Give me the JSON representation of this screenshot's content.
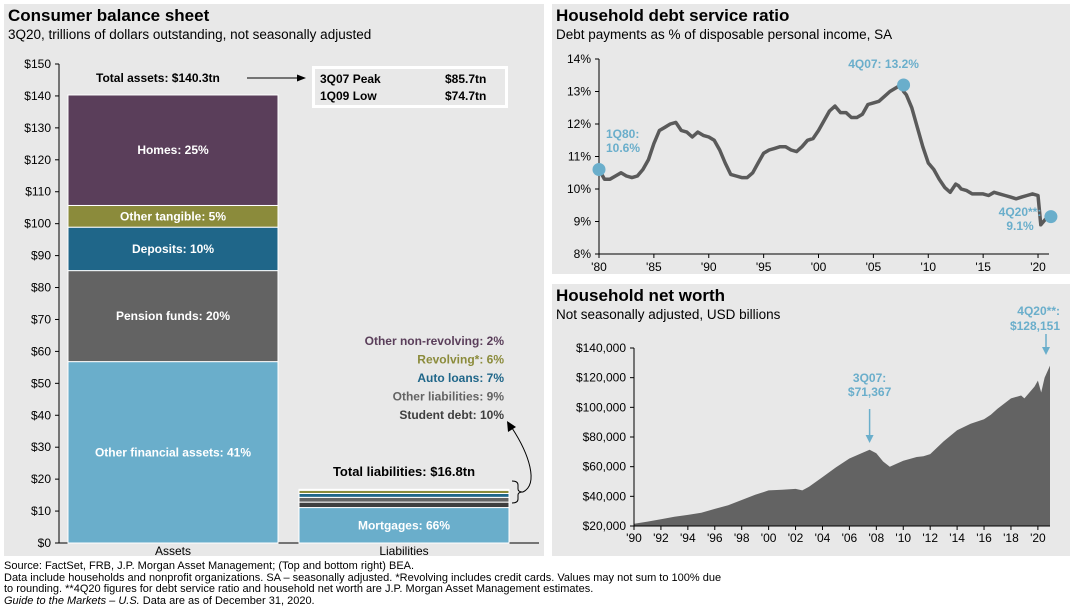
{
  "footnote": {
    "line1": "Source: FactSet, FRB, J.P. Morgan Asset Management; (Top and bottom right) BEA.",
    "line2": "Data include households and nonprofit organizations. SA – seasonally adjusted. *Revolving includes credit cards. Values may not sum to 100% due",
    "line3": "to rounding. **4Q20 figures for debt service ratio and household net worth are J.P. Morgan Asset Management estimates.",
    "line4_italic": "Guide to the Markets – U.S.",
    "line4_rest": " Data are as of December 31, 2020."
  },
  "chart_data": [
    {
      "id": "balance-sheet",
      "type": "bar",
      "stacked": true,
      "title": "Consumer balance sheet",
      "subtitle": "3Q20, trillions of dollars outstanding, not seasonally adjusted",
      "categories": [
        "Assets",
        "Liabilities"
      ],
      "ylim": [
        0,
        150
      ],
      "yticks": [
        0,
        10,
        20,
        30,
        40,
        50,
        60,
        70,
        80,
        90,
        100,
        110,
        120,
        130,
        140,
        150
      ],
      "ytick_labels": [
        "$0",
        "$10",
        "$20",
        "$30",
        "$40",
        "$50",
        "$60",
        "$70",
        "$80",
        "$90",
        "$100",
        "$110",
        "$120",
        "$130",
        "$140",
        "$150"
      ],
      "assets": {
        "total_label": "Total assets: $140.3tn",
        "total": 140.3,
        "segments": [
          {
            "name": "Other financial assets",
            "label": "Other financial assets: 41%",
            "value": 56.8,
            "color": "#6aaecb"
          },
          {
            "name": "Pension funds",
            "label": "Pension funds: 20%",
            "value": 28.5,
            "color": "#636363"
          },
          {
            "name": "Deposits",
            "label": "Deposits: 10%",
            "value": 13.6,
            "color": "#1f6689"
          },
          {
            "name": "Other tangible",
            "label": "Other tangible: 5%",
            "value": 6.8,
            "color": "#8b8b3b"
          },
          {
            "name": "Homes",
            "label": "Homes: 25%",
            "value": 34.6,
            "color": "#5a3e5a"
          }
        ]
      },
      "liabilities": {
        "total_label": "Total liabilities: $16.8tn",
        "total": 16.8,
        "segments": [
          {
            "name": "Mortgages",
            "label": "Mortgages: 66%",
            "value": 11.1,
            "color": "#6aaecb"
          },
          {
            "name": "Student debt",
            "label": "Student debt: 10%",
            "value": 1.7,
            "color": "#3e3e3e"
          },
          {
            "name": "Other liabilities",
            "label": "Other liabilities: 9%",
            "value": 1.5,
            "color": "#636363"
          },
          {
            "name": "Auto loans",
            "label": "Auto loans: 7%",
            "value": 1.2,
            "color": "#1f6689"
          },
          {
            "name": "Revolving",
            "label": "Revolving*: 6%",
            "value": 1.0,
            "color": "#8b8b3b"
          },
          {
            "name": "Other non-revolving",
            "label": "Other non-revolving: 2%",
            "value": 0.3,
            "color": "#5a3e5a"
          }
        ]
      },
      "legend_labels": [
        {
          "text": "Other non-revolving: 2%",
          "color": "#5a3e5a"
        },
        {
          "text": "Revolving*: 6%",
          "color": "#8b8b3b"
        },
        {
          "text": "Auto loans: 7%",
          "color": "#1f6689"
        },
        {
          "text": "Other liabilities: 9%",
          "color": "#636363"
        },
        {
          "text": "Student debt: 10%",
          "color": "#3e3e3e"
        }
      ],
      "peak_box": [
        {
          "label": "3Q07 Peak",
          "value": "$85.7tn"
        },
        {
          "label": "1Q09 Low",
          "value": "$74.7tn"
        }
      ]
    },
    {
      "id": "debt-service",
      "type": "line",
      "title": "Household debt service ratio",
      "subtitle": "Debt payments as % of disposable personal income, SA",
      "ylim": [
        8,
        14
      ],
      "yticks": [
        8,
        9,
        10,
        11,
        12,
        13,
        14
      ],
      "ytick_labels": [
        "8%",
        "9%",
        "10%",
        "11%",
        "12%",
        "13%",
        "14%"
      ],
      "xlim": [
        1980,
        2021
      ],
      "xticks": [
        1980,
        1985,
        1990,
        1995,
        2000,
        2005,
        2010,
        2015,
        2020
      ],
      "xtick_labels": [
        "'80",
        "'85",
        "'90",
        "'95",
        "'00",
        "'05",
        "'10",
        "'15",
        "'20"
      ],
      "series": [
        {
          "name": "Debt service ratio",
          "color": "#5a5a5a",
          "x": [
            1980,
            1980.5,
            1981,
            1981.5,
            1982,
            1982.5,
            1983,
            1983.5,
            1984,
            1984.5,
            1985,
            1985.5,
            1986,
            1986.5,
            1987,
            1987.5,
            1988,
            1988.5,
            1989,
            1989.5,
            1990,
            1990.5,
            1991,
            1991.5,
            1992,
            1992.5,
            1993,
            1993.5,
            1994,
            1994.5,
            1995,
            1995.5,
            1996,
            1996.5,
            1997,
            1997.5,
            1998,
            1998.5,
            1999,
            1999.5,
            2000,
            2000.5,
            2001,
            2001.5,
            2002,
            2002.5,
            2003,
            2003.5,
            2004,
            2004.5,
            2005,
            2005.5,
            2006,
            2006.5,
            2007,
            2007.5,
            2007.75,
            2008,
            2008.5,
            2009,
            2009.5,
            2010,
            2010.5,
            2011,
            2011.5,
            2012,
            2012.5,
            2012.75,
            2013,
            2013.5,
            2014,
            2014.5,
            2015,
            2015.5,
            2016,
            2016.5,
            2017,
            2017.5,
            2018,
            2018.5,
            2019,
            2019.5,
            2020,
            2020.25,
            2020.5,
            2020.75
          ],
          "y": [
            10.6,
            10.3,
            10.3,
            10.4,
            10.5,
            10.4,
            10.35,
            10.4,
            10.6,
            10.9,
            11.4,
            11.8,
            11.9,
            12.0,
            12.05,
            11.8,
            11.75,
            11.6,
            11.75,
            11.65,
            11.6,
            11.5,
            11.2,
            10.8,
            10.45,
            10.4,
            10.35,
            10.35,
            10.5,
            10.8,
            11.1,
            11.2,
            11.25,
            11.3,
            11.3,
            11.2,
            11.15,
            11.3,
            11.5,
            11.55,
            11.8,
            12.1,
            12.4,
            12.55,
            12.35,
            12.35,
            12.2,
            12.2,
            12.3,
            12.6,
            12.65,
            12.7,
            12.85,
            13.0,
            13.1,
            13.2,
            13.0,
            12.9,
            12.5,
            11.9,
            11.3,
            10.8,
            10.6,
            10.3,
            10.05,
            9.9,
            10.15,
            10.1,
            10.0,
            9.95,
            9.85,
            9.85,
            9.85,
            9.8,
            9.9,
            9.85,
            9.8,
            9.75,
            9.7,
            9.75,
            9.8,
            9.85,
            9.8,
            8.9,
            9.0,
            9.1
          ]
        }
      ],
      "annotations": [
        {
          "id": "start",
          "label1": "1Q80:",
          "label2": "10.6%",
          "x": 1980,
          "y": 10.6
        },
        {
          "id": "peak",
          "label1": "4Q07: 13.2%",
          "label2": "",
          "x": 2007.75,
          "y": 13.2
        },
        {
          "id": "end",
          "label1": "4Q20**:",
          "label2": "9.1%",
          "x": 2020.9,
          "y": 9.15
        }
      ]
    },
    {
      "id": "net-worth",
      "type": "area",
      "title": "Household net worth",
      "subtitle": "Not seasonally adjusted, USD billions",
      "ylim": [
        20000,
        140000
      ],
      "yticks": [
        20000,
        40000,
        60000,
        80000,
        100000,
        120000,
        140000
      ],
      "ytick_labels": [
        "$20,000",
        "$40,000",
        "$60,000",
        "$80,000",
        "$100,000",
        "$120,000",
        "$140,000"
      ],
      "xlim": [
        1990,
        2020.9
      ],
      "xticks": [
        1990,
        1992,
        1994,
        1996,
        1998,
        2000,
        2002,
        2004,
        2006,
        2008,
        2010,
        2012,
        2014,
        2016,
        2018,
        2020
      ],
      "xtick_labels": [
        "'90",
        "'92",
        "'94",
        "'96",
        "'98",
        "'00",
        "'02",
        "'04",
        "'06",
        "'08",
        "'10",
        "'12",
        "'14",
        "'16",
        "'18",
        "'20"
      ],
      "series": [
        {
          "name": "Net worth",
          "color": "#636363",
          "x": [
            1990,
            1991,
            1992,
            1993,
            1994,
            1995,
            1996,
            1997,
            1998,
            1999,
            2000,
            2001,
            2002,
            2002.5,
            2003,
            2004,
            2005,
            2006,
            2007,
            2007.5,
            2008,
            2008.5,
            2009,
            2009.5,
            2010,
            2011,
            2011.5,
            2012,
            2013,
            2014,
            2015,
            2016,
            2016.5,
            2017,
            2018,
            2018.75,
            2019,
            2019.75,
            2020,
            2020.25,
            2020.5,
            2020.9
          ],
          "y": [
            21500,
            23000,
            24500,
            26200,
            27500,
            29000,
            31500,
            34000,
            37500,
            41000,
            44000,
            44500,
            45000,
            44000,
            46500,
            53000,
            59500,
            65500,
            69500,
            71367,
            69000,
            63500,
            60000,
            62000,
            64000,
            66500,
            67000,
            68500,
            77000,
            84500,
            89000,
            92000,
            95000,
            99000,
            106000,
            108000,
            106000,
            114000,
            118000,
            110000,
            120000,
            128151
          ]
        }
      ],
      "annotations": [
        {
          "id": "peak",
          "label1": "3Q07:",
          "label2": "$71,367",
          "x": 2007.5,
          "y": 71367
        },
        {
          "id": "end",
          "label1": "4Q20**:",
          "label2": "$128,151",
          "x": 2020.9,
          "y": 128151
        }
      ]
    }
  ]
}
